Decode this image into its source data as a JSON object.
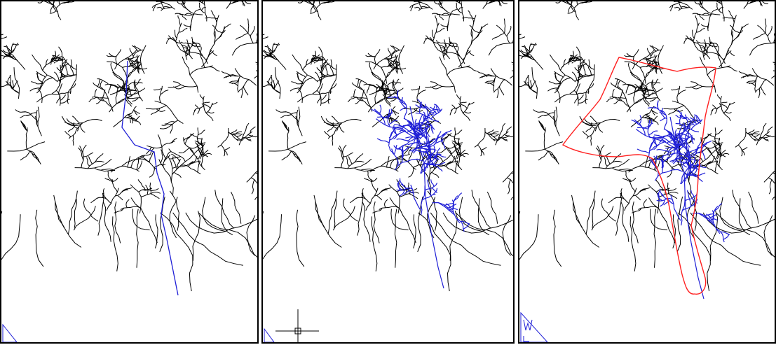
{
  "colors": {
    "background": "#ffffff",
    "frame": "#000000",
    "streams": "#000000",
    "highlight": "#1f1fd6",
    "boundary": "#ff2020"
  },
  "panels": [
    {
      "id": "panel-1",
      "highlight": "main-channel",
      "boundary": false,
      "ucs_icon": "corner-triangle-icon",
      "crosshair": false
    },
    {
      "id": "panel-2",
      "highlight": "drainage-network",
      "boundary": false,
      "ucs_icon": "corner-triangle-icon",
      "crosshair": true
    },
    {
      "id": "panel-3",
      "highlight": "drainage-network",
      "boundary": true,
      "ucs_icon": "ucs-w-icon",
      "crosshair": false
    }
  ]
}
